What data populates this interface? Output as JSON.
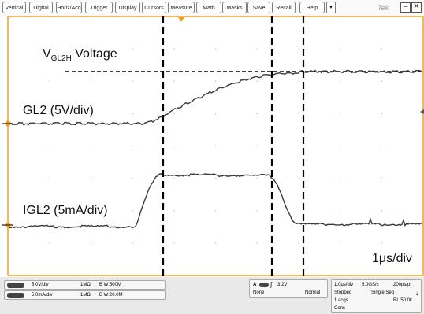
{
  "menu": {
    "items": [
      "Vertical",
      "Digital",
      "Horiz/Acq",
      "Trigger",
      "Display",
      "Cursors",
      "Measure",
      "Math",
      "Masks",
      "Save",
      "Recall",
      "Help"
    ],
    "dropdown_glyph": "▾",
    "logo": "Tek",
    "minimize_glyph": "–",
    "close_glyph": "✕"
  },
  "annotations": {
    "vgl2h_prefix": "V",
    "vgl2h_sub": "GL2H",
    "vgl2h_suffix": " Voltage",
    "gl2_label": "GL2 (5V/div)",
    "igl2_label": "IGL2 (5mA/div)",
    "timebase_label": "1μs/div"
  },
  "status": {
    "ch1": {
      "scale": "5.0V/div",
      "impedance": "1MΩ",
      "bandwidth": "B W:500M"
    },
    "ch2": {
      "scale": "5.0mA/div",
      "impedance": "1MΩ",
      "bandwidth": "B W:20.0M"
    },
    "trigger": {
      "channel": "A",
      "level": "3.2V",
      "coupling": "None",
      "mode": "Normal"
    },
    "acquisition": {
      "horiz": "1.0μs/div",
      "sample_rate": "5.0GS/s",
      "resolution": "200ps/pt",
      "state": "Stopped",
      "seq": "Single Seq",
      "acqs": "1 acqs",
      "record_length": "RL:50.0k",
      "extra": "Cons"
    }
  },
  "colors": {
    "graticule_border": "#f0a020",
    "trace": "#3a3a3a",
    "cursor": "#000000",
    "marker": "#f0a020"
  }
}
